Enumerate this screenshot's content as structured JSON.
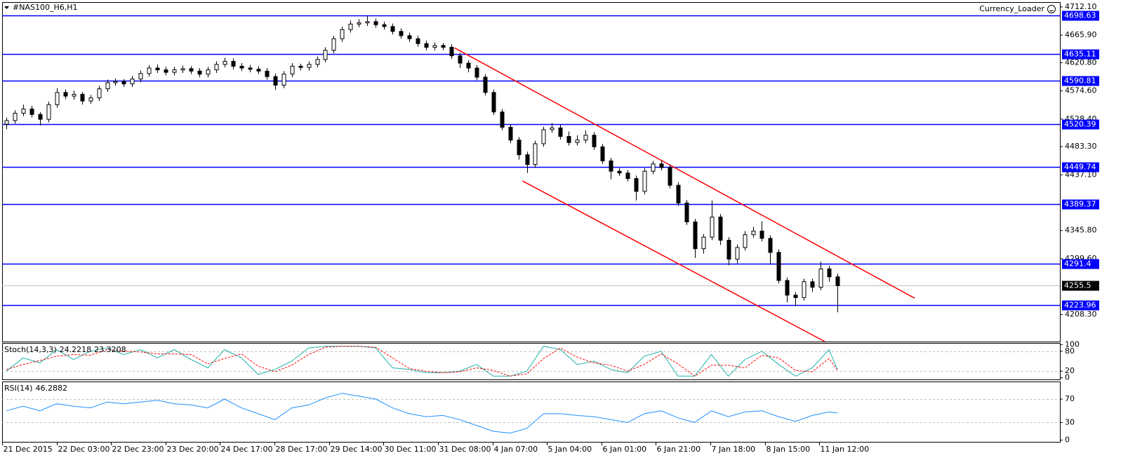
{
  "chart_data": [
    {
      "type": "candlestick",
      "title": "#NAS100_H6,H1",
      "annotation": "Currency_Loader",
      "xlim": [
        -0.5,
        125.5
      ],
      "ylim": [
        4164,
        4720
      ],
      "yticks": [
        {
          "value": 4712.1,
          "label": "4712.10"
        },
        {
          "value": 4665.9,
          "label": "4665.90"
        },
        {
          "value": 4620.8,
          "label": "4620.80"
        },
        {
          "value": 4574.6,
          "label": "4574.60"
        },
        {
          "value": 4528.4,
          "label": "4528.40"
        },
        {
          "value": 4483.3,
          "label": "4483.30"
        },
        {
          "value": 4437.1,
          "label": "4437.10"
        },
        {
          "value": 4345.8,
          "label": "4345.80"
        },
        {
          "value": 4299.6,
          "label": "4299.60"
        },
        {
          "value": 4208.3,
          "label": "4208.30"
        }
      ],
      "xticks": [
        {
          "value": -0.5,
          "label": "21 Dec 2015"
        },
        {
          "value": 5.99,
          "label": "22 Dec 03:00"
        },
        {
          "value": 12.48,
          "label": "22 Dec 23:00"
        },
        {
          "value": 18.97,
          "label": "23 Dec 20:00"
        },
        {
          "value": 25.46,
          "label": "24 Dec 17:00"
        },
        {
          "value": 31.95,
          "label": "28 Dec 17:00"
        },
        {
          "value": 38.44,
          "label": "29 Dec 14:00"
        },
        {
          "value": 44.93,
          "label": "30 Dec 11:00"
        },
        {
          "value": 51.42,
          "label": "31 Dec 08:00"
        },
        {
          "value": 57.91,
          "label": "4 Jan 07:00"
        },
        {
          "value": 64.4,
          "label": "5 Jan 04:00"
        },
        {
          "value": 70.89,
          "label": "6 Jan 01:00"
        },
        {
          "value": 77.38,
          "label": "6 Jan 21:00"
        },
        {
          "value": 83.87,
          "label": "7 Jan 18:00"
        },
        {
          "value": 90.36,
          "label": "8 Jan 15:00"
        },
        {
          "value": 96.85,
          "label": "11 Jan 12:00"
        }
      ],
      "open": [
        4520,
        4526,
        4538,
        4545,
        4536,
        4528,
        4552,
        4572,
        4566,
        4569,
        4558,
        4563,
        4578,
        4588,
        4590,
        4586,
        4594,
        4603,
        4612,
        4609,
        4605,
        4609,
        4611,
        4607,
        4602,
        4609,
        4618,
        4623,
        4615,
        4612,
        4610,
        4607,
        4598,
        4584,
        4602,
        4615,
        4613,
        4618,
        4626,
        4641,
        4660,
        4675,
        4684,
        4686,
        4688,
        4683,
        4680,
        4672,
        4665,
        4660,
        4652,
        4646,
        4649,
        4646,
        4632,
        4620,
        4612,
        4597,
        4572,
        4540,
        4515,
        4494,
        4470,
        4454,
        4488,
        4511,
        4514,
        4500,
        4490,
        4494,
        4502,
        4483,
        4460,
        4443,
        4440,
        4431,
        4410,
        4443,
        4455,
        4449,
        4420,
        4391,
        4360,
        4316,
        4335,
        4368,
        4330,
        4299,
        4318,
        4339,
        4345,
        4333,
        4310,
        4264,
        4240,
        4236,
        4262,
        4253,
        4283,
        4270
      ],
      "high": [
        4531,
        4543,
        4552,
        4550,
        4540,
        4557,
        4579,
        4577,
        4575,
        4573,
        4568,
        4583,
        4593,
        4595,
        4594,
        4599,
        4608,
        4617,
        4618,
        4614,
        4614,
        4616,
        4615,
        4612,
        4614,
        4623,
        4629,
        4628,
        4620,
        4617,
        4615,
        4612,
        4603,
        4607,
        4620,
        4619,
        4623,
        4631,
        4646,
        4665,
        4680,
        4690,
        4692,
        4697,
        4693,
        4688,
        4685,
        4677,
        4670,
        4665,
        4657,
        4654,
        4653,
        4651,
        4637,
        4625,
        4617,
        4602,
        4577,
        4545,
        4520,
        4499,
        4475,
        4493,
        4516,
        4522,
        4519,
        4508,
        4502,
        4510,
        4507,
        4488,
        4465,
        4448,
        4445,
        4436,
        4448,
        4460,
        4460,
        4454,
        4425,
        4396,
        4365,
        4340,
        4395,
        4373,
        4335,
        4323,
        4345,
        4352,
        4361,
        4338,
        4315,
        4269,
        4245,
        4267,
        4267,
        4295,
        4288,
        4275
      ],
      "low": [
        4512,
        4521,
        4533,
        4531,
        4518,
        4523,
        4547,
        4561,
        4560,
        4552,
        4553,
        4558,
        4573,
        4583,
        4581,
        4581,
        4589,
        4598,
        4604,
        4600,
        4600,
        4604,
        4602,
        4597,
        4597,
        4604,
        4613,
        4610,
        4607,
        4605,
        4602,
        4593,
        4576,
        4579,
        4597,
        4608,
        4608,
        4613,
        4621,
        4636,
        4655,
        4670,
        4679,
        4681,
        4678,
        4675,
        4667,
        4660,
        4655,
        4647,
        4641,
        4641,
        4641,
        4627,
        4612,
        4605,
        4592,
        4567,
        4535,
        4510,
        4489,
        4462,
        4440,
        4449,
        4483,
        4506,
        4495,
        4485,
        4485,
        4489,
        4478,
        4455,
        4430,
        4435,
        4426,
        4395,
        4405,
        4438,
        4444,
        4415,
        4386,
        4355,
        4301,
        4308,
        4330,
        4322,
        4289,
        4292,
        4313,
        4334,
        4328,
        4290,
        4259,
        4228,
        4222,
        4231,
        4245,
        4248,
        4262,
        4212
      ],
      "close": [
        4526,
        4538,
        4545,
        4536,
        4528,
        4552,
        4572,
        4566,
        4569,
        4558,
        4563,
        4578,
        4588,
        4590,
        4586,
        4594,
        4603,
        4612,
        4609,
        4605,
        4609,
        4611,
        4607,
        4602,
        4609,
        4618,
        4623,
        4615,
        4612,
        4610,
        4607,
        4598,
        4584,
        4602,
        4615,
        4613,
        4618,
        4626,
        4641,
        4660,
        4675,
        4684,
        4686,
        4688,
        4683,
        4680,
        4672,
        4665,
        4660,
        4652,
        4646,
        4649,
        4646,
        4632,
        4620,
        4612,
        4597,
        4572,
        4540,
        4515,
        4494,
        4470,
        4454,
        4488,
        4511,
        4514,
        4500,
        4490,
        4494,
        4502,
        4483,
        4460,
        4443,
        4440,
        4431,
        4410,
        4443,
        4455,
        4449,
        4420,
        4391,
        4360,
        4316,
        4335,
        4368,
        4330,
        4299,
        4318,
        4339,
        4345,
        4333,
        4310,
        4264,
        4240,
        4236,
        4262,
        4253,
        4283,
        4270,
        4255.5
      ],
      "levels": {
        "color": "#0000ff",
        "values": [
          4698.63,
          4635.11,
          4590.81,
          4520.39,
          4449.74,
          4389.37,
          4291.4,
          4223.96
        ]
      },
      "last_price": 4255.5,
      "trendlines": {
        "color": "#ff0000",
        "lines": [
          {
            "x": [
              53.4,
              108.2
            ],
            "y": [
              4645,
              4235
            ]
          },
          {
            "x": [
              61.5,
              97.5
            ],
            "y": [
              4427,
              4164
            ]
          }
        ]
      }
    },
    {
      "type": "line",
      "title": "Stoch(14,3,3)",
      "ylim": [
        -5,
        105
      ],
      "yticks": [
        0,
        20,
        80,
        100
      ],
      "levels": [
        20,
        80
      ],
      "x": [
        0,
        2,
        4,
        6,
        8,
        10,
        12,
        14,
        16,
        18,
        20,
        22,
        24,
        26,
        28,
        30,
        32,
        34,
        36,
        38,
        40,
        42,
        44,
        46,
        48,
        50,
        52,
        54,
        56,
        58,
        60,
        62,
        64,
        66,
        68,
        70,
        72,
        74,
        76,
        78,
        80,
        82,
        84,
        86,
        88,
        90,
        92,
        94,
        96,
        98,
        99
      ],
      "series": [
        {
          "color": "#20b2aa",
          "values": [
            20,
            60,
            45,
            85,
            55,
            80,
            90,
            70,
            85,
            60,
            85,
            55,
            30,
            85,
            60,
            10,
            25,
            50,
            90,
            95,
            95,
            95,
            90,
            30,
            25,
            15,
            15,
            20,
            40,
            5,
            5,
            20,
            95,
            85,
            40,
            50,
            25,
            15,
            65,
            80,
            5,
            5,
            70,
            5,
            55,
            80,
            40,
            5,
            30,
            85,
            24.2218
          ]
        },
        {
          "color": "#ff0000",
          "dashed": true,
          "values": [
            25,
            40,
            52,
            65,
            70,
            68,
            85,
            80,
            78,
            72,
            72,
            70,
            42,
            58,
            72,
            35,
            18,
            38,
            70,
            92,
            95,
            95,
            92,
            60,
            28,
            20,
            15,
            18,
            30,
            22,
            5,
            12,
            58,
            90,
            62,
            45,
            38,
            20,
            40,
            72,
            42,
            5,
            38,
            38,
            30,
            68,
            60,
            22,
            18,
            58,
            23.3208
          ]
        }
      ]
    },
    {
      "type": "line",
      "title": "RSI(14)",
      "ylim": [
        -3,
        100
      ],
      "yticks": [
        0,
        30,
        70
      ],
      "levels": [
        30,
        70
      ],
      "x": [
        0,
        2,
        4,
        6,
        8,
        10,
        12,
        14,
        16,
        18,
        20,
        22,
        24,
        26,
        28,
        30,
        32,
        34,
        36,
        38,
        40,
        42,
        44,
        46,
        48,
        50,
        52,
        54,
        56,
        58,
        60,
        62,
        64,
        66,
        68,
        70,
        72,
        74,
        76,
        78,
        80,
        82,
        84,
        86,
        88,
        90,
        92,
        94,
        96,
        98,
        99
      ],
      "series": [
        {
          "color": "#1e90ff",
          "values": [
            50,
            58,
            50,
            62,
            58,
            55,
            65,
            62,
            65,
            68,
            62,
            60,
            55,
            70,
            55,
            45,
            35,
            55,
            60,
            72,
            80,
            75,
            70,
            55,
            45,
            40,
            42,
            35,
            25,
            15,
            12,
            20,
            45,
            45,
            42,
            40,
            35,
            30,
            45,
            50,
            38,
            30,
            50,
            40,
            48,
            50,
            40,
            32,
            42,
            48,
            46.2882
          ]
        }
      ]
    }
  ]
}
